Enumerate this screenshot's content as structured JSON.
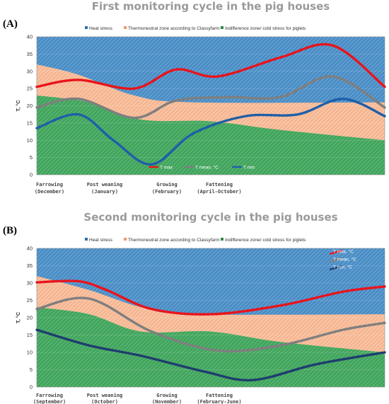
{
  "chart_data": [
    {
      "type": "line",
      "panel_label": "(A)",
      "title": "First monitoring cycle in the pig houses",
      "ylabel": "T, °C",
      "ylim": [
        0,
        40
      ],
      "yticks": [
        0,
        5,
        10,
        15,
        20,
        25,
        30,
        35,
        40
      ],
      "legend": [
        "Heat stress",
        "Thermoneutral zone according to Classyfarm",
        "Indifference zone/ cold stress for piglets"
      ],
      "categories": [
        {
          "line1": "Farrowing",
          "line2": "(December)",
          "x": 0
        },
        {
          "line1": "Post weaning",
          "line2": "(January)",
          "x": 15
        },
        {
          "line1": "Growing",
          "line2": "(February)",
          "x": 33
        },
        {
          "line1": "Fattening",
          "line2": "(April-October)",
          "x": 48
        }
      ],
      "x_range": [
        0,
        100
      ],
      "zones": {
        "heat_stress": {
          "color": "#4a90c8",
          "upper": 40
        },
        "thermoneutral": {
          "color": "#f5b48e",
          "upper": [
            [
              0,
              32
            ],
            [
              12,
              29
            ],
            [
              28,
              23
            ],
            [
              45,
              21
            ],
            [
              100,
              21
            ]
          ]
        },
        "indifference": {
          "color": "#3ea35b",
          "upper": [
            [
              0,
              23
            ],
            [
              15,
              21
            ],
            [
              30,
              16
            ],
            [
              50,
              15.5
            ],
            [
              70,
              13
            ],
            [
              100,
              10
            ]
          ]
        }
      },
      "series": [
        {
          "name": "T max",
          "color": "#e8141c",
          "points": [
            [
              0,
              25.5
            ],
            [
              12,
              27.5
            ],
            [
              28,
              25
            ],
            [
              40,
              30.5
            ],
            [
              52,
              28.5
            ],
            [
              70,
              34
            ],
            [
              85,
              37.5
            ],
            [
              100,
              25.5
            ]
          ]
        },
        {
          "name": "T mean, °C",
          "color": "#7f7f7f",
          "points": [
            [
              0,
              19.5
            ],
            [
              12,
              22
            ],
            [
              28,
              16.5
            ],
            [
              40,
              21.5
            ],
            [
              55,
              22.5
            ],
            [
              70,
              22.5
            ],
            [
              85,
              28.5
            ],
            [
              100,
              19.5
            ]
          ]
        },
        {
          "name": "T min",
          "color": "#1f5fa8",
          "points": [
            [
              0,
              13.5
            ],
            [
              12,
              17.5
            ],
            [
              22,
              10
            ],
            [
              33,
              3
            ],
            [
              45,
              12
            ],
            [
              60,
              17
            ],
            [
              75,
              17.5
            ],
            [
              88,
              22
            ],
            [
              100,
              17
            ]
          ]
        }
      ],
      "series_legend_layout": "inline"
    },
    {
      "type": "line",
      "panel_label": "(B)",
      "title": "Second monitoring cycle in the pig houses",
      "ylabel": "T, °C",
      "ylim": [
        0,
        40
      ],
      "yticks": [
        0,
        5,
        10,
        15,
        20,
        25,
        30,
        35,
        40
      ],
      "legend": [
        "Heat stress",
        "Thermoneutral zone according to Classyfarm",
        "Indifference zone/ cold stress for piglets"
      ],
      "categories": [
        {
          "line1": "Farrowing",
          "line2": "(September)",
          "x": 0
        },
        {
          "line1": "Post weaning",
          "line2": "(October)",
          "x": 15
        },
        {
          "line1": "Growing",
          "line2": "(November)",
          "x": 33
        },
        {
          "line1": "Fattening",
          "line2": "(February-June)",
          "x": 48
        }
      ],
      "x_range": [
        0,
        100
      ],
      "zones": {
        "heat_stress": {
          "color": "#4a90c8",
          "upper": 40
        },
        "thermoneutral": {
          "color": "#f5b48e",
          "upper": [
            [
              0,
              32
            ],
            [
              15,
              28
            ],
            [
              30,
              23
            ],
            [
              45,
              21
            ],
            [
              100,
              21
            ]
          ]
        },
        "indifference": {
          "color": "#3ea35b",
          "upper": [
            [
              0,
              23
            ],
            [
              15,
              21
            ],
            [
              30,
              16
            ],
            [
              50,
              16
            ],
            [
              70,
              13
            ],
            [
              100,
              10
            ]
          ]
        }
      },
      "series": [
        {
          "name": "T max, °C",
          "color": "#e8141c",
          "points": [
            [
              0,
              30.2
            ],
            [
              12,
              30.5
            ],
            [
              20,
              28
            ],
            [
              33,
              22.5
            ],
            [
              50,
              21
            ],
            [
              70,
              23.5
            ],
            [
              88,
              27.5
            ],
            [
              100,
              29
            ]
          ]
        },
        {
          "name": "T mean, °C",
          "color": "#7f7f7f",
          "points": [
            [
              0,
              22.5
            ],
            [
              15,
              25.5
            ],
            [
              33,
              16
            ],
            [
              52,
              10.5
            ],
            [
              70,
              12
            ],
            [
              88,
              16.5
            ],
            [
              100,
              18.5
            ]
          ]
        },
        {
          "name": "T min, °C",
          "color": "#1f3d6e",
          "points": [
            [
              0,
              16.5
            ],
            [
              15,
              12
            ],
            [
              30,
              9
            ],
            [
              48,
              4.5
            ],
            [
              62,
              2
            ],
            [
              80,
              6.5
            ],
            [
              100,
              10
            ]
          ]
        }
      ],
      "series_legend_layout": "stacked"
    }
  ]
}
